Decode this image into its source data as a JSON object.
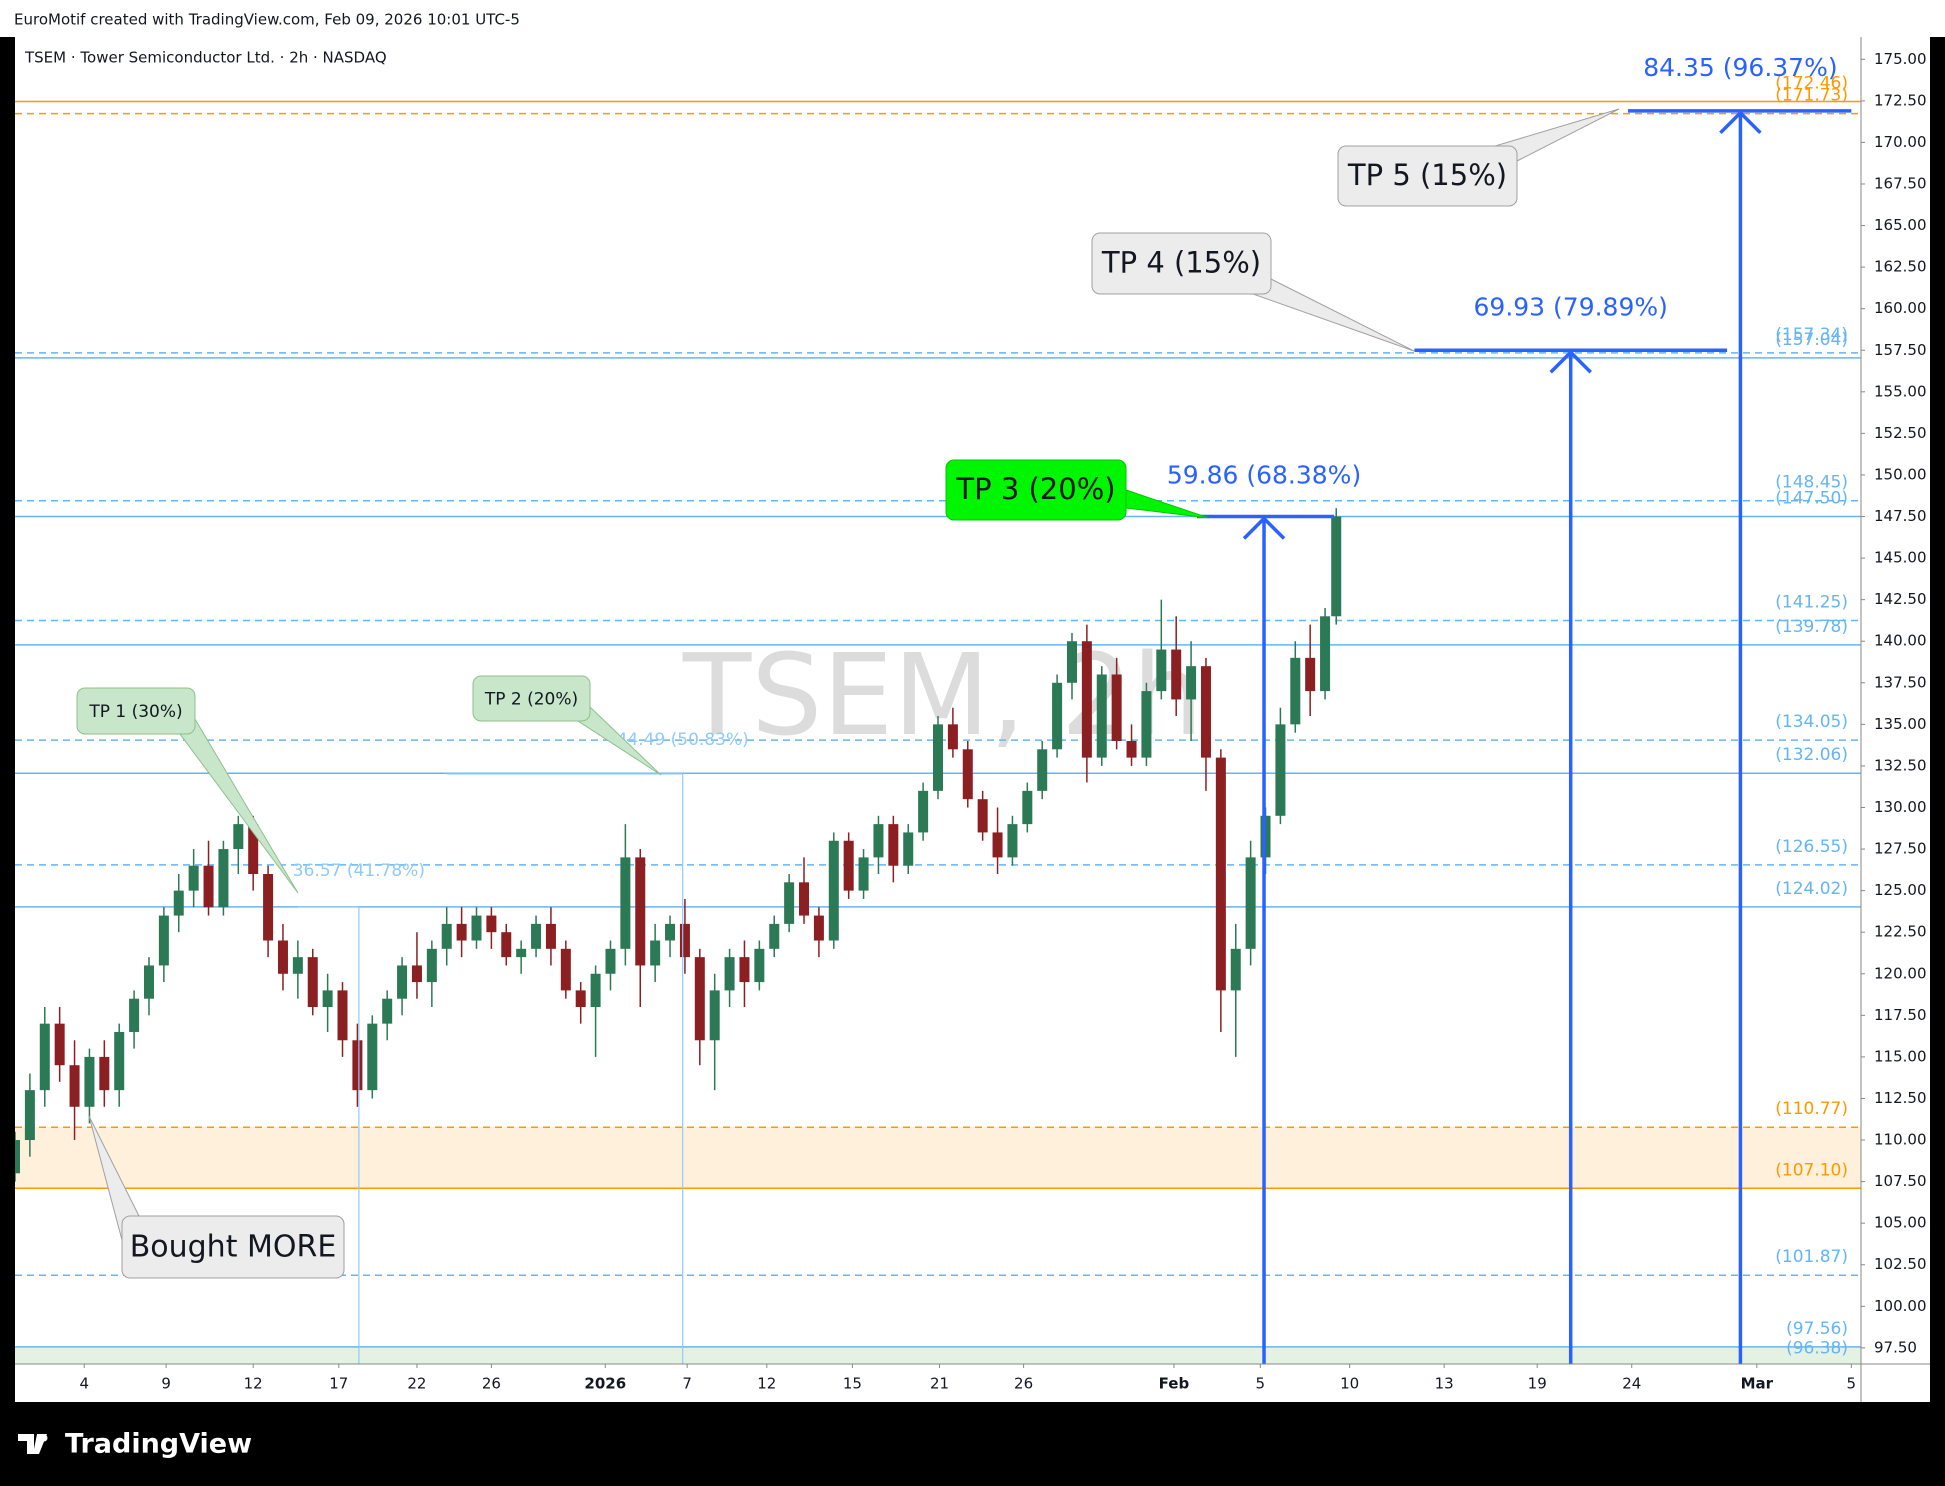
{
  "header": "EuroMotif created with TradingView.com, Feb 09, 2026 10:01 UTC-5",
  "footer": "TradingView",
  "chart_data": {
    "type": "candlestick",
    "symbol": "TSEM · Tower Semiconductor Ltd. · 2h · NASDAQ",
    "watermark": "TSEM, 2h",
    "up_color": "#2b7a55",
    "down_color": "#8c1f22",
    "xlim": [
      0,
      248
    ],
    "xticks": [
      {
        "value": 9.3,
        "label": "4"
      },
      {
        "value": 20.3,
        "label": "9"
      },
      {
        "value": 32,
        "label": "12"
      },
      {
        "value": 43.5,
        "label": "17"
      },
      {
        "value": 54,
        "label": "22"
      },
      {
        "value": 64,
        "label": "26"
      },
      {
        "value": 79.3,
        "label": "2026"
      },
      {
        "value": 90.3,
        "label": "7"
      },
      {
        "value": 101,
        "label": "12"
      },
      {
        "value": 112.5,
        "label": "15"
      },
      {
        "value": 124.2,
        "label": "21"
      },
      {
        "value": 135.5,
        "label": "26"
      },
      {
        "value": 155.7,
        "label": "Feb"
      },
      {
        "value": 167.3,
        "label": "5"
      },
      {
        "value": 179.3,
        "label": "10"
      },
      {
        "value": 192,
        "label": "13"
      },
      {
        "value": 204.5,
        "label": "19"
      },
      {
        "value": 217.2,
        "label": "24"
      },
      {
        "value": 234,
        "label": "Mar"
      },
      {
        "value": 246.7,
        "label": "5"
      }
    ],
    "ylim": [
      96.53,
      176.34
    ],
    "yticks": [
      {
        "value": 97.5,
        "label": "97.50"
      },
      {
        "value": 100,
        "label": "100.00"
      },
      {
        "value": 102.5,
        "label": "102.50"
      },
      {
        "value": 105,
        "label": "105.00"
      },
      {
        "value": 107.5,
        "label": "107.50"
      },
      {
        "value": 110,
        "label": "110.00"
      },
      {
        "value": 112.5,
        "label": "112.50"
      },
      {
        "value": 115,
        "label": "115.00"
      },
      {
        "value": 117.5,
        "label": "117.50"
      },
      {
        "value": 120,
        "label": "120.00"
      },
      {
        "value": 122.5,
        "label": "122.50"
      },
      {
        "value": 125,
        "label": "125.00"
      },
      {
        "value": 127.5,
        "label": "127.50"
      },
      {
        "value": 130,
        "label": "130.00"
      },
      {
        "value": 132.5,
        "label": "132.50"
      },
      {
        "value": 135,
        "label": "135.00"
      },
      {
        "value": 137.5,
        "label": "137.50"
      },
      {
        "value": 140,
        "label": "140.00"
      },
      {
        "value": 142.5,
        "label": "142.50"
      },
      {
        "value": 145,
        "label": "145.00"
      },
      {
        "value": 147.5,
        "label": "147.50"
      },
      {
        "value": 150,
        "label": "150.00"
      },
      {
        "value": 152.5,
        "label": "152.50"
      },
      {
        "value": 155,
        "label": "155.00"
      },
      {
        "value": 157.5,
        "label": "157.50"
      },
      {
        "value": 160,
        "label": "160.00"
      },
      {
        "value": 162.5,
        "label": "162.50"
      },
      {
        "value": 165,
        "label": "165.00"
      },
      {
        "value": 167.5,
        "label": "167.50"
      },
      {
        "value": 170,
        "label": "170.00"
      },
      {
        "value": 172.5,
        "label": "172.50"
      },
      {
        "value": 175,
        "label": "175.00"
      }
    ],
    "zones": [
      {
        "from": 107.1,
        "to": 110.77,
        "color": "#fff0dc"
      },
      {
        "from": 96.38,
        "to": 97.56,
        "color": "#e4f2e4"
      }
    ],
    "levels": [
      {
        "value": 172.46,
        "label": "(172.46)",
        "style": "solid",
        "color": "#ff9800"
      },
      {
        "value": 171.73,
        "label": "(171.73)",
        "style": "dashed",
        "color": "#ff9800"
      },
      {
        "value": 157.34,
        "label": "(157.34)",
        "style": "dashed",
        "color": "#64b5f6"
      },
      {
        "value": 157.04,
        "label": "(157.04)",
        "style": "solid",
        "color": "#64b5f6"
      },
      {
        "value": 148.45,
        "label": "(148.45)",
        "style": "dashed",
        "color": "#64b5f6"
      },
      {
        "value": 147.5,
        "label": "(147.50)",
        "style": "solid",
        "color": "#64b5f6"
      },
      {
        "value": 141.25,
        "label": "(141.25)",
        "style": "dashed",
        "color": "#64b5f6"
      },
      {
        "value": 139.78,
        "label": "(139.78)",
        "style": "solid",
        "color": "#64b5f6"
      },
      {
        "value": 134.05,
        "label": "(134.05)",
        "style": "dashed",
        "color": "#64b5f6"
      },
      {
        "value": 132.06,
        "label": "(132.06)",
        "style": "solid",
        "color": "#64b5f6"
      },
      {
        "value": 126.55,
        "label": "(126.55)",
        "style": "dashed",
        "color": "#64b5f6"
      },
      {
        "value": 124.02,
        "label": "(124.02)",
        "style": "solid",
        "color": "#64b5f6"
      },
      {
        "value": 110.77,
        "label": "(110.77)",
        "style": "dashed",
        "color": "#ff9800"
      },
      {
        "value": 107.1,
        "label": "(107.10)",
        "style": "solid",
        "color": "#ff9800"
      },
      {
        "value": 101.87,
        "label": "(101.87)",
        "style": "dashed",
        "color": "#64b5f6"
      },
      {
        "value": 97.56,
        "label": "(97.56)",
        "style": "solid",
        "color": "#64b5f6"
      },
      {
        "value": 96.38,
        "label": "(96.38)",
        "style": "solid",
        "color": "#64b5f6"
      }
    ],
    "measures": [
      {
        "label": "36.57 (41.78%)",
        "target": 124.02,
        "x_start": 38,
        "x_end": 46.2,
        "x_arrow": 46.2,
        "color": "#90caf9",
        "faded": true
      },
      {
        "label": "44.49 (50.83%)",
        "target": 132.02,
        "x_start": 58,
        "x_end": 89.7,
        "x_arrow": 89.7,
        "color": "#90caf9",
        "faded": true
      },
      {
        "label": "59.86 (68.38%)",
        "target": 147.5,
        "x_start": 158.8,
        "x_end": 177.2,
        "x_arrow": 167.8,
        "color": "#2962ff",
        "faded": false
      },
      {
        "label": "69.93 (79.89%)",
        "target": 157.5,
        "x_start": 188,
        "x_end": 230,
        "x_arrow": 209,
        "color": "#2962ff",
        "faded": false
      },
      {
        "label": "84.35 (96.37%)",
        "target": 171.9,
        "x_start": 216.7,
        "x_end": 246.7,
        "x_arrow": 231.8,
        "color": "#2962ff",
        "faded": false
      }
    ],
    "annotations": [
      {
        "text": "TP 1 (30%)",
        "fill": "#c8e6c9",
        "stroke": "#8fbf8f"
      },
      {
        "text": "TP 2 (20%)",
        "fill": "#c8e6c9",
        "stroke": "#8fbf8f"
      },
      {
        "text": "TP 3 (20%)",
        "fill": "#00f500",
        "stroke": "#00c800"
      },
      {
        "text": "TP 4 (15%)",
        "fill": "#ececec",
        "stroke": "#a0a0a0"
      },
      {
        "text": "TP 5 (15%)",
        "fill": "#ececec",
        "stroke": "#a0a0a0"
      },
      {
        "text": "Bought MORE",
        "fill": "#ececec",
        "stroke": "#a0a0a0"
      }
    ],
    "candles": [
      {
        "x": 0,
        "open": 108,
        "high": 110.5,
        "low": 107.5,
        "close": 110
      },
      {
        "x": 2,
        "open": 110,
        "high": 114,
        "low": 109,
        "close": 113
      },
      {
        "x": 4,
        "open": 113,
        "high": 118,
        "low": 112,
        "close": 117
      },
      {
        "x": 6,
        "open": 117,
        "high": 118,
        "low": 113.5,
        "close": 114.5
      },
      {
        "x": 8,
        "open": 114.5,
        "high": 116,
        "low": 110,
        "close": 112
      },
      {
        "x": 10,
        "open": 112,
        "high": 115.5,
        "low": 111,
        "close": 115
      },
      {
        "x": 12,
        "open": 115,
        "high": 116,
        "low": 112,
        "close": 113
      },
      {
        "x": 14,
        "open": 113,
        "high": 117,
        "low": 112,
        "close": 116.5
      },
      {
        "x": 16,
        "open": 116.5,
        "high": 119,
        "low": 115.5,
        "close": 118.5
      },
      {
        "x": 18,
        "open": 118.5,
        "high": 121,
        "low": 117.5,
        "close": 120.5
      },
      {
        "x": 20,
        "open": 120.5,
        "high": 124,
        "low": 119.5,
        "close": 123.5
      },
      {
        "x": 22,
        "open": 123.5,
        "high": 126,
        "low": 122.5,
        "close": 125
      },
      {
        "x": 24,
        "open": 125,
        "high": 127.5,
        "low": 124,
        "close": 126.5
      },
      {
        "x": 26,
        "open": 126.5,
        "high": 128,
        "low": 123.5,
        "close": 124
      },
      {
        "x": 28,
        "open": 124,
        "high": 128,
        "low": 123.5,
        "close": 127.5
      },
      {
        "x": 30,
        "open": 127.5,
        "high": 129.5,
        "low": 126,
        "close": 129
      },
      {
        "x": 32,
        "open": 129,
        "high": 129.5,
        "low": 125,
        "close": 126
      },
      {
        "x": 34,
        "open": 126,
        "high": 126.5,
        "low": 121,
        "close": 122
      },
      {
        "x": 36,
        "open": 122,
        "high": 123,
        "low": 119,
        "close": 120
      },
      {
        "x": 38,
        "open": 120,
        "high": 122,
        "low": 118.5,
        "close": 121
      },
      {
        "x": 40,
        "open": 121,
        "high": 121.5,
        "low": 117.5,
        "close": 118
      },
      {
        "x": 42,
        "open": 118,
        "high": 120,
        "low": 116.5,
        "close": 119
      },
      {
        "x": 44,
        "open": 119,
        "high": 119.5,
        "low": 115,
        "close": 116
      },
      {
        "x": 46,
        "open": 116,
        "high": 117,
        "low": 112,
        "close": 113
      },
      {
        "x": 48,
        "open": 113,
        "high": 117.5,
        "low": 112.5,
        "close": 117
      },
      {
        "x": 50,
        "open": 117,
        "high": 119,
        "low": 116,
        "close": 118.5
      },
      {
        "x": 52,
        "open": 118.5,
        "high": 121,
        "low": 117.5,
        "close": 120.5
      },
      {
        "x": 54,
        "open": 120.5,
        "high": 122.5,
        "low": 118.5,
        "close": 119.5
      },
      {
        "x": 56,
        "open": 119.5,
        "high": 122,
        "low": 118,
        "close": 121.5
      },
      {
        "x": 58,
        "open": 121.5,
        "high": 124,
        "low": 120.5,
        "close": 123
      },
      {
        "x": 60,
        "open": 123,
        "high": 124,
        "low": 121,
        "close": 122
      },
      {
        "x": 62,
        "open": 122,
        "high": 124,
        "low": 121.5,
        "close": 123.5
      },
      {
        "x": 64,
        "open": 123.5,
        "high": 124,
        "low": 121.5,
        "close": 122.5
      },
      {
        "x": 66,
        "open": 122.5,
        "high": 123,
        "low": 120.5,
        "close": 121
      },
      {
        "x": 68,
        "open": 121,
        "high": 122,
        "low": 120,
        "close": 121.5
      },
      {
        "x": 70,
        "open": 121.5,
        "high": 123.5,
        "low": 121,
        "close": 123
      },
      {
        "x": 72,
        "open": 123,
        "high": 124,
        "low": 120.5,
        "close": 121.5
      },
      {
        "x": 74,
        "open": 121.5,
        "high": 122,
        "low": 118.5,
        "close": 119
      },
      {
        "x": 76,
        "open": 119,
        "high": 119.5,
        "low": 117,
        "close": 118
      },
      {
        "x": 78,
        "open": 118,
        "high": 120.5,
        "low": 115,
        "close": 120
      },
      {
        "x": 80,
        "open": 120,
        "high": 122,
        "low": 119,
        "close": 121.5
      },
      {
        "x": 82,
        "open": 121.5,
        "high": 129,
        "low": 120.5,
        "close": 127
      },
      {
        "x": 84,
        "open": 127,
        "high": 127.5,
        "low": 118,
        "close": 120.5
      },
      {
        "x": 86,
        "open": 120.5,
        "high": 123,
        "low": 119.5,
        "close": 122
      },
      {
        "x": 88,
        "open": 122,
        "high": 123.5,
        "low": 121,
        "close": 123
      },
      {
        "x": 90,
        "open": 123,
        "high": 124.5,
        "low": 120,
        "close": 121
      },
      {
        "x": 92,
        "open": 121,
        "high": 121.5,
        "low": 114.5,
        "close": 116
      },
      {
        "x": 94,
        "open": 116,
        "high": 120,
        "low": 113,
        "close": 119
      },
      {
        "x": 96,
        "open": 119,
        "high": 121.5,
        "low": 118,
        "close": 121
      },
      {
        "x": 98,
        "open": 121,
        "high": 122,
        "low": 118,
        "close": 119.5
      },
      {
        "x": 100,
        "open": 119.5,
        "high": 122,
        "low": 119,
        "close": 121.5
      },
      {
        "x": 102,
        "open": 121.5,
        "high": 123.5,
        "low": 121,
        "close": 123
      },
      {
        "x": 104,
        "open": 123,
        "high": 126,
        "low": 122.5,
        "close": 125.5
      },
      {
        "x": 106,
        "open": 125.5,
        "high": 127,
        "low": 123,
        "close": 123.5
      },
      {
        "x": 108,
        "open": 123.5,
        "high": 124,
        "low": 121,
        "close": 122
      },
      {
        "x": 110,
        "open": 122,
        "high": 128.5,
        "low": 121.5,
        "close": 128
      },
      {
        "x": 112,
        "open": 128,
        "high": 128.5,
        "low": 124.5,
        "close": 125
      },
      {
        "x": 114,
        "open": 125,
        "high": 127.5,
        "low": 124.5,
        "close": 127
      },
      {
        "x": 116,
        "open": 127,
        "high": 129.5,
        "low": 126,
        "close": 129
      },
      {
        "x": 118,
        "open": 129,
        "high": 129.5,
        "low": 125.5,
        "close": 126.5
      },
      {
        "x": 120,
        "open": 126.5,
        "high": 129,
        "low": 126,
        "close": 128.5
      },
      {
        "x": 122,
        "open": 128.5,
        "high": 131.5,
        "low": 128,
        "close": 131
      },
      {
        "x": 124,
        "open": 131,
        "high": 135.5,
        "low": 130.5,
        "close": 135
      },
      {
        "x": 126,
        "open": 135,
        "high": 136,
        "low": 133,
        "close": 133.5
      },
      {
        "x": 128,
        "open": 133.5,
        "high": 134,
        "low": 130,
        "close": 130.5
      },
      {
        "x": 130,
        "open": 130.5,
        "high": 131,
        "low": 128,
        "close": 128.5
      },
      {
        "x": 132,
        "open": 128.5,
        "high": 130,
        "low": 126,
        "close": 127
      },
      {
        "x": 134,
        "open": 127,
        "high": 129.5,
        "low": 126.5,
        "close": 129
      },
      {
        "x": 136,
        "open": 129,
        "high": 131.5,
        "low": 128.5,
        "close": 131
      },
      {
        "x": 138,
        "open": 131,
        "high": 134,
        "low": 130.5,
        "close": 133.5
      },
      {
        "x": 140,
        "open": 133.5,
        "high": 138,
        "low": 133,
        "close": 137.5
      },
      {
        "x": 142,
        "open": 137.5,
        "high": 140.5,
        "low": 136.5,
        "close": 140
      },
      {
        "x": 144,
        "open": 140,
        "high": 141,
        "low": 131.5,
        "close": 133
      },
      {
        "x": 146,
        "open": 133,
        "high": 138.5,
        "low": 132.5,
        "close": 138
      },
      {
        "x": 148,
        "open": 138,
        "high": 139,
        "low": 133.5,
        "close": 134
      },
      {
        "x": 150,
        "open": 134,
        "high": 135,
        "low": 132.5,
        "close": 133
      },
      {
        "x": 152,
        "open": 133,
        "high": 137.5,
        "low": 132.5,
        "close": 137
      },
      {
        "x": 154,
        "open": 137,
        "high": 142.5,
        "low": 136.5,
        "close": 139.5
      },
      {
        "x": 156,
        "open": 139.5,
        "high": 141.5,
        "low": 135.5,
        "close": 136.5
      },
      {
        "x": 158,
        "open": 136.5,
        "high": 140,
        "low": 134,
        "close": 138.5
      },
      {
        "x": 160,
        "open": 138.5,
        "high": 139,
        "low": 131,
        "close": 133
      },
      {
        "x": 162,
        "open": 133,
        "high": 133.5,
        "low": 116.5,
        "close": 119
      },
      {
        "x": 164,
        "open": 119,
        "high": 123,
        "low": 115,
        "close": 121.5
      },
      {
        "x": 166,
        "open": 121.5,
        "high": 128,
        "low": 120.5,
        "close": 127
      },
      {
        "x": 168,
        "open": 127,
        "high": 130,
        "low": 126,
        "close": 129.5
      },
      {
        "x": 170,
        "open": 129.5,
        "high": 136,
        "low": 129,
        "close": 135
      },
      {
        "x": 172,
        "open": 135,
        "high": 140,
        "low": 134.5,
        "close": 139
      },
      {
        "x": 174,
        "open": 139,
        "high": 141,
        "low": 135.5,
        "close": 137
      },
      {
        "x": 176,
        "open": 137,
        "high": 142,
        "low": 136.5,
        "close": 141.5
      },
      {
        "x": 177.5,
        "open": 141.5,
        "high": 148,
        "low": 141,
        "close": 147.5
      }
    ]
  }
}
